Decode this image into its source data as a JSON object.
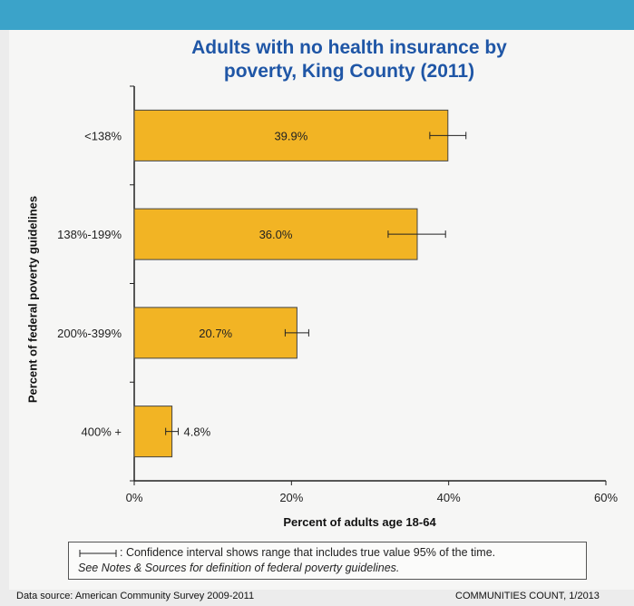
{
  "chart_data": {
    "type": "bar",
    "orientation": "horizontal",
    "title": "Adults with no health insurance by\npoverty, King County (2011)",
    "xlabel": "Percent of adults age 18-64",
    "ylabel": "Percent of federal poverty guidelines",
    "categories": [
      "<138%",
      "138%-199%",
      "200%-399%",
      "400% +"
    ],
    "values": [
      39.9,
      36.0,
      20.7,
      4.8
    ],
    "value_labels": [
      "39.9%",
      "36.0%",
      "20.7%",
      "4.8%"
    ],
    "ci_low": [
      37.6,
      32.3,
      19.2,
      4.0
    ],
    "ci_high": [
      42.2,
      39.6,
      22.2,
      5.6
    ],
    "xlim": [
      0,
      60
    ],
    "x_ticks": [
      0,
      20,
      40,
      60
    ],
    "x_tick_labels": [
      "0%",
      "20%",
      "40%",
      "60%"
    ],
    "bar_color": "#f2b424",
    "grid": false,
    "legend": "none"
  },
  "note": {
    "line1": ": Confidence interval shows range that includes true value 95% of the time.",
    "line2": "See Notes & Sources for definition of federal poverty guidelines."
  },
  "footer": {
    "source": "Data source: American Community Survey 2009-2011",
    "credit": "COMMUNITIES COUNT, 1/2013"
  },
  "colors": {
    "top_band": "#3ba3c9",
    "title": "#1f56a6",
    "background": "#f6f6f5"
  }
}
